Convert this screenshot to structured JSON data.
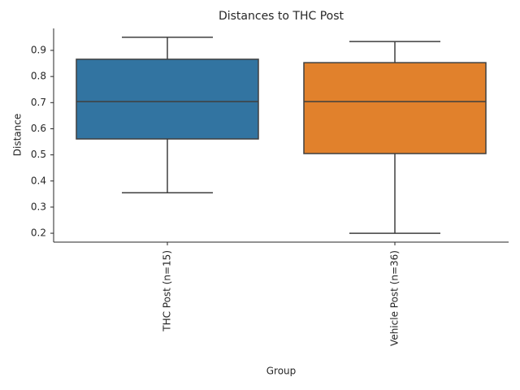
{
  "chart_data": {
    "type": "box",
    "title": "Distances to THC Post",
    "x_label": "Group",
    "y_label": "Distance",
    "categories": [
      "THC Post (n=15)",
      "Vehicle Post (n=36)"
    ],
    "boxes": [
      {
        "whislo": 0.355,
        "q1": 0.561,
        "med": 0.704,
        "q3": 0.866,
        "whishi": 0.95,
        "color": "#3274a1"
      },
      {
        "whislo": 0.2,
        "q1": 0.505,
        "med": 0.704,
        "q3": 0.853,
        "whishi": 0.934,
        "color": "#e1812c"
      }
    ],
    "ylim": [
      0.166,
      0.984
    ],
    "yticks": [
      0.2,
      0.3,
      0.4,
      0.5,
      0.6,
      0.7,
      0.8,
      0.9
    ],
    "grid": false
  }
}
